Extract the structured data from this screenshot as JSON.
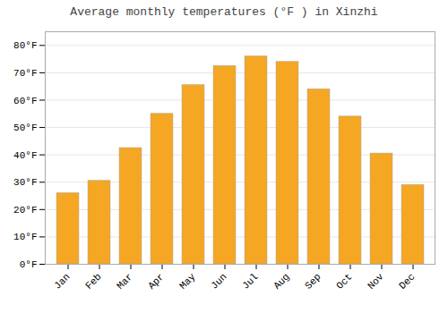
{
  "chart_data": {
    "type": "bar",
    "title": "Average monthly temperatures (°F ) in Xinzhi",
    "categories": [
      "Jan",
      "Feb",
      "Mar",
      "Apr",
      "May",
      "Jun",
      "Jul",
      "Aug",
      "Sep",
      "Oct",
      "Nov",
      "Dec"
    ],
    "values": [
      26,
      30.5,
      42.5,
      55,
      65.5,
      72.5,
      76,
      74,
      64,
      54,
      40.5,
      29
    ],
    "color": "#F5A623",
    "ylim": [
      0,
      85
    ],
    "yticks": [
      {
        "value": 0,
        "label": "0°F"
      },
      {
        "value": 10,
        "label": "10°F"
      },
      {
        "value": 20,
        "label": "20°F"
      },
      {
        "value": 30,
        "label": "30°F"
      },
      {
        "value": 40,
        "label": "40°F"
      },
      {
        "value": 50,
        "label": "50°F"
      },
      {
        "value": 60,
        "label": "60°F"
      },
      {
        "value": 70,
        "label": "70°F"
      },
      {
        "value": 80,
        "label": "80°F"
      }
    ],
    "grid": true
  }
}
